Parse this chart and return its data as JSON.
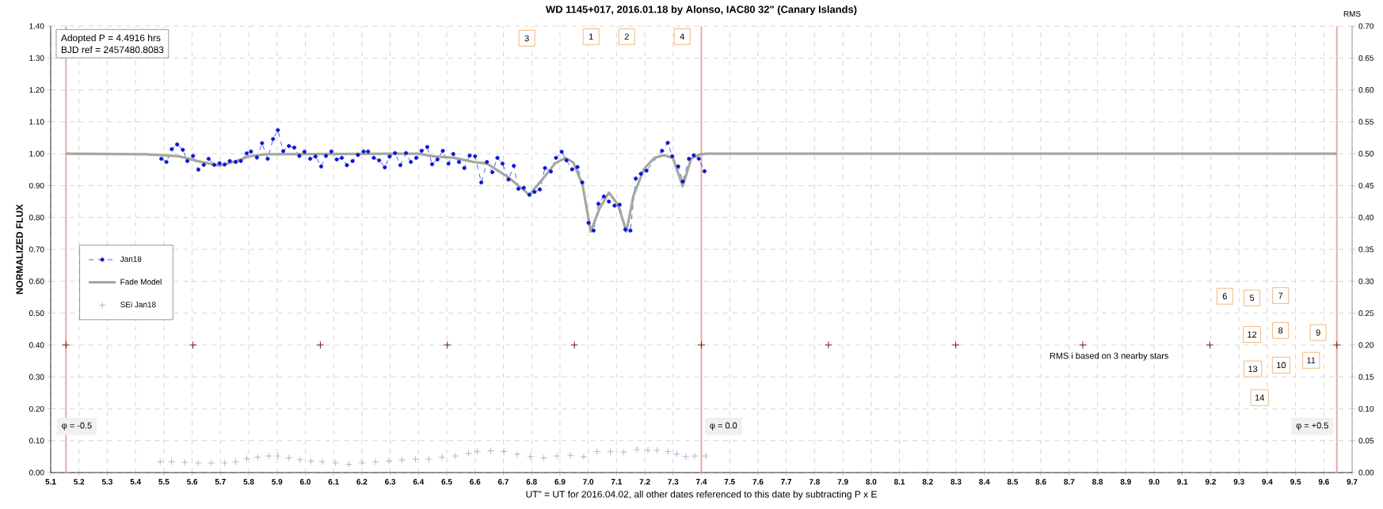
{
  "chart_data": {
    "type": "line",
    "title": "WD 1145+017,  2016.01.18  by Alonso,  IAC80  32\" (Canary Islands)",
    "xlabel": "UT\" = UT for 2016.04.02, all other dates referenced to this date by subtracting P x E",
    "ylabel": "NORMALIZED  FLUX",
    "y2label": "RMS",
    "xlim": [
      5.1,
      9.7
    ],
    "ylim": [
      0,
      1.4
    ],
    "y2lim": [
      0,
      0.7
    ],
    "xticks": [
      5.1,
      5.2,
      5.3,
      5.4,
      5.5,
      5.6,
      5.7,
      5.8,
      5.9,
      {
        "value": 6.0,
        "label": "6.0"
      },
      6.1,
      6.2,
      6.3,
      6.4,
      6.5,
      6.6,
      6.7,
      6.8,
      6.9,
      {
        "value": 7.0,
        "label": "7.0"
      },
      7.1,
      7.2,
      7.3,
      7.4,
      7.5,
      7.6,
      7.7,
      7.8,
      7.9,
      {
        "value": 8.0,
        "label": "8.0"
      },
      8.1,
      8.2,
      8.3,
      8.4,
      8.5,
      8.6,
      8.7,
      8.8,
      8.9,
      {
        "value": 9.0,
        "label": "9.0"
      },
      9.1,
      9.2,
      9.3,
      9.4,
      9.5,
      9.6,
      9.7
    ],
    "yticks": [
      {
        "value": 0,
        "label": "0.00"
      },
      {
        "value": 0.1,
        "label": "0.10"
      },
      {
        "value": 0.2,
        "label": "0.20"
      },
      {
        "value": 0.3,
        "label": "0.30"
      },
      {
        "value": 0.4,
        "label": "0.40"
      },
      {
        "value": 0.5,
        "label": "0.50"
      },
      {
        "value": 0.6,
        "label": "0.60"
      },
      {
        "value": 0.7,
        "label": "0.70"
      },
      {
        "value": 0.8,
        "label": "0.80"
      },
      {
        "value": 0.9,
        "label": "0.90"
      },
      {
        "value": 1.0,
        "label": "1.00"
      },
      {
        "value": 1.1,
        "label": "1.10"
      },
      {
        "value": 1.2,
        "label": "1.20"
      },
      {
        "value": 1.3,
        "label": "1.30"
      },
      {
        "value": 1.4,
        "label": "1.40"
      }
    ],
    "y2ticks": [
      {
        "value": 0,
        "label": "0.00"
      },
      {
        "value": 0.05,
        "label": "0.05"
      },
      {
        "value": 0.1,
        "label": "0.10"
      },
      {
        "value": 0.15,
        "label": "0.15"
      },
      {
        "value": 0.2,
        "label": "0.20"
      },
      {
        "value": 0.25,
        "label": "0.25"
      },
      {
        "value": 0.3,
        "label": "0.30"
      },
      {
        "value": 0.35,
        "label": "0.35"
      },
      {
        "value": 0.4,
        "label": "0.40"
      },
      {
        "value": 0.45,
        "label": "0.45"
      },
      {
        "value": 0.5,
        "label": "0.50"
      },
      {
        "value": 0.55,
        "label": "0.55"
      },
      {
        "value": 0.6,
        "label": "0.60"
      },
      {
        "value": 0.65,
        "label": "0.65"
      },
      {
        "value": 0.7,
        "label": "0.70"
      }
    ],
    "grid": true,
    "legend": "left",
    "series": [
      {
        "name": "Jan18",
        "color": "#0a14d8",
        "marker": "circle",
        "line_style": "dashed",
        "x": [
          5.491,
          5.509,
          5.528,
          5.547,
          5.567,
          5.583,
          5.603,
          5.622,
          5.641,
          5.658,
          5.678,
          5.697,
          5.715,
          5.733,
          5.754,
          5.772,
          5.793,
          5.808,
          5.829,
          5.847,
          5.867,
          5.886,
          5.903,
          5.922,
          5.942,
          5.961,
          5.979,
          5.997,
          6.017,
          6.036,
          6.056,
          6.073,
          6.092,
          6.111,
          6.129,
          6.147,
          6.167,
          6.186,
          6.206,
          6.222,
          6.242,
          6.261,
          6.281,
          6.298,
          6.317,
          6.336,
          6.356,
          6.373,
          6.392,
          6.411,
          6.431,
          6.448,
          6.467,
          6.486,
          6.506,
          6.523,
          6.543,
          6.562,
          6.581,
          6.6,
          6.622,
          6.642,
          6.661,
          6.679,
          6.697,
          6.718,
          6.737,
          6.753,
          6.772,
          6.792,
          6.81,
          6.829,
          6.847,
          6.868,
          6.886,
          6.906,
          6.923,
          6.943,
          6.962,
          6.979,
          7.001,
          7.019,
          7.036,
          7.055,
          7.073,
          7.093,
          7.111,
          7.131,
          7.149,
          7.168,
          7.186,
          7.206,
          7.261,
          7.281,
          7.297,
          7.318,
          7.334,
          7.356,
          7.373,
          7.391,
          7.411
        ],
        "values": [
          0.984,
          0.974,
          1.014,
          1.029,
          1.012,
          0.977,
          0.993,
          0.95,
          0.965,
          0.984,
          0.965,
          0.97,
          0.966,
          0.977,
          0.974,
          0.977,
          1.001,
          1.007,
          0.988,
          1.033,
          0.984,
          1.046,
          1.074,
          1.008,
          1.024,
          1.019,
          0.993,
          1.006,
          0.984,
          0.991,
          0.96,
          0.993,
          1.007,
          0.982,
          0.987,
          0.964,
          0.977,
          0.996,
          1.007,
          1.007,
          0.987,
          0.979,
          0.957,
          0.991,
          1.002,
          0.964,
          1.002,
          0.974,
          0.987,
          1.009,
          1.021,
          0.967,
          0.982,
          1.009,
          0.969,
          0.999,
          0.974,
          0.955,
          0.994,
          0.992,
          0.91,
          0.974,
          0.942,
          0.987,
          0.969,
          0.919,
          0.962,
          0.89,
          0.893,
          0.871,
          0.88,
          0.888,
          0.955,
          0.944,
          0.987,
          1.006,
          0.979,
          0.951,
          0.958,
          0.91,
          0.783,
          0.759,
          0.843,
          0.866,
          0.85,
          0.837,
          0.84,
          0.762,
          0.759,
          0.922,
          0.937,
          0.947,
          1.009,
          1.034,
          0.992,
          0.96,
          0.913,
          0.984,
          0.995,
          0.984,
          0.945
        ]
      },
      {
        "name": "Fade Model",
        "color": "#a3aa9c",
        "marker": "none",
        "line_style": "solid",
        "x": [
          5.154,
          5.432,
          5.5,
          5.553,
          5.618,
          5.696,
          5.756,
          5.803,
          5.858,
          6.4,
          6.451,
          6.525,
          6.595,
          6.642,
          6.716,
          6.792,
          6.845,
          6.882,
          6.919,
          6.947,
          6.98,
          7.009,
          7.04,
          7.073,
          7.105,
          7.135,
          7.16,
          7.197,
          7.234,
          7.267,
          7.299,
          7.334,
          7.364,
          7.396,
          7.42,
          9.646
        ],
        "values": [
          1.0,
          0.998,
          0.995,
          0.992,
          0.977,
          0.962,
          0.977,
          0.992,
          0.998,
          1.0,
          0.992,
          0.987,
          0.974,
          0.969,
          0.927,
          0.871,
          0.927,
          0.969,
          0.987,
          0.973,
          0.902,
          0.756,
          0.828,
          0.878,
          0.84,
          0.756,
          0.869,
          0.952,
          0.987,
          0.995,
          0.987,
          0.898,
          0.985,
          0.998,
          1.0,
          1.0
        ]
      },
      {
        "type": "scatter",
        "color": "#7a1a1a",
        "marker": "cross",
        "x": [
          5.154,
          5.603,
          6.053,
          6.502,
          6.951,
          7.4,
          7.849,
          8.299,
          8.748,
          9.197,
          9.646
        ],
        "values": [
          0.4,
          0.4,
          0.4,
          0.4,
          0.4,
          0.4,
          0.4,
          0.4,
          0.4,
          0.4,
          0.4
        ]
      },
      {
        "name": "SEi Jan18",
        "type": "scatter",
        "axis": "y2",
        "color": "#94aacb",
        "marker": "cross",
        "x": [
          5.487,
          5.527,
          5.574,
          5.621,
          5.668,
          5.715,
          5.754,
          5.793,
          5.832,
          5.871,
          5.903,
          5.942,
          5.981,
          6.02,
          6.06,
          6.107,
          6.154,
          6.201,
          6.248,
          6.295,
          6.342,
          6.389,
          6.436,
          6.483,
          6.53,
          6.577,
          6.608,
          6.655,
          6.702,
          6.749,
          6.796,
          6.843,
          6.89,
          6.937,
          6.984,
          7.031,
          7.078,
          7.125,
          7.172,
          7.211,
          7.243,
          7.282,
          7.313,
          7.345,
          7.376,
          7.415
        ],
        "values": [
          0.017,
          0.017,
          0.016,
          0.015,
          0.015,
          0.015,
          0.017,
          0.022,
          0.024,
          0.026,
          0.026,
          0.023,
          0.02,
          0.018,
          0.017,
          0.015,
          0.013,
          0.015,
          0.017,
          0.018,
          0.02,
          0.021,
          0.021,
          0.024,
          0.026,
          0.03,
          0.033,
          0.034,
          0.033,
          0.029,
          0.025,
          0.023,
          0.026,
          0.027,
          0.025,
          0.033,
          0.033,
          0.032,
          0.036,
          0.035,
          0.035,
          0.033,
          0.029,
          0.025,
          0.026,
          0.026
        ]
      }
    ],
    "ref_lines": [
      {
        "axis": "x",
        "value": 5.154,
        "color": "#eba8a8"
      },
      {
        "axis": "x",
        "value": 7.4,
        "color": "#eba8a8"
      },
      {
        "axis": "x",
        "value": 9.646,
        "color": "#eba8a8"
      }
    ],
    "annotations": [
      "Adopted P = 4.4916  hrs",
      "BJD ref = 2457480.8083",
      "RMS i based on 3 nearby stars",
      {
        "text": "φ = -0.5",
        "x": 5.154,
        "y": 0.145
      },
      {
        "text": "φ = 0.0",
        "x": 7.4,
        "y": 0.145
      },
      {
        "text": "φ = +0.5",
        "x": 9.646,
        "y": 0.145
      },
      {
        "text": "3",
        "x": 6.783,
        "y": 1.362
      },
      {
        "text": "1",
        "x": 7.01,
        "y": 1.367
      },
      {
        "text": "2",
        "x": 7.136,
        "y": 1.367
      },
      {
        "text": "4",
        "x": 7.332,
        "y": 1.367
      },
      {
        "text": "6",
        "x": 9.25,
        "y": 0.553
      },
      {
        "text": "5",
        "x": 9.346,
        "y": 0.548
      },
      {
        "text": "7",
        "x": 9.447,
        "y": 0.555
      },
      {
        "text": "12",
        "x": 9.346,
        "y": 0.433
      },
      {
        "text": "8",
        "x": 9.447,
        "y": 0.446
      },
      {
        "text": "9",
        "x": 9.58,
        "y": 0.439
      },
      {
        "text": "13",
        "x": 9.349,
        "y": 0.325
      },
      {
        "text": "10",
        "x": 9.449,
        "y": 0.337
      },
      {
        "text": "11",
        "x": 9.555,
        "y": 0.352
      },
      {
        "text": "14",
        "x": 9.373,
        "y": 0.235
      }
    ]
  }
}
